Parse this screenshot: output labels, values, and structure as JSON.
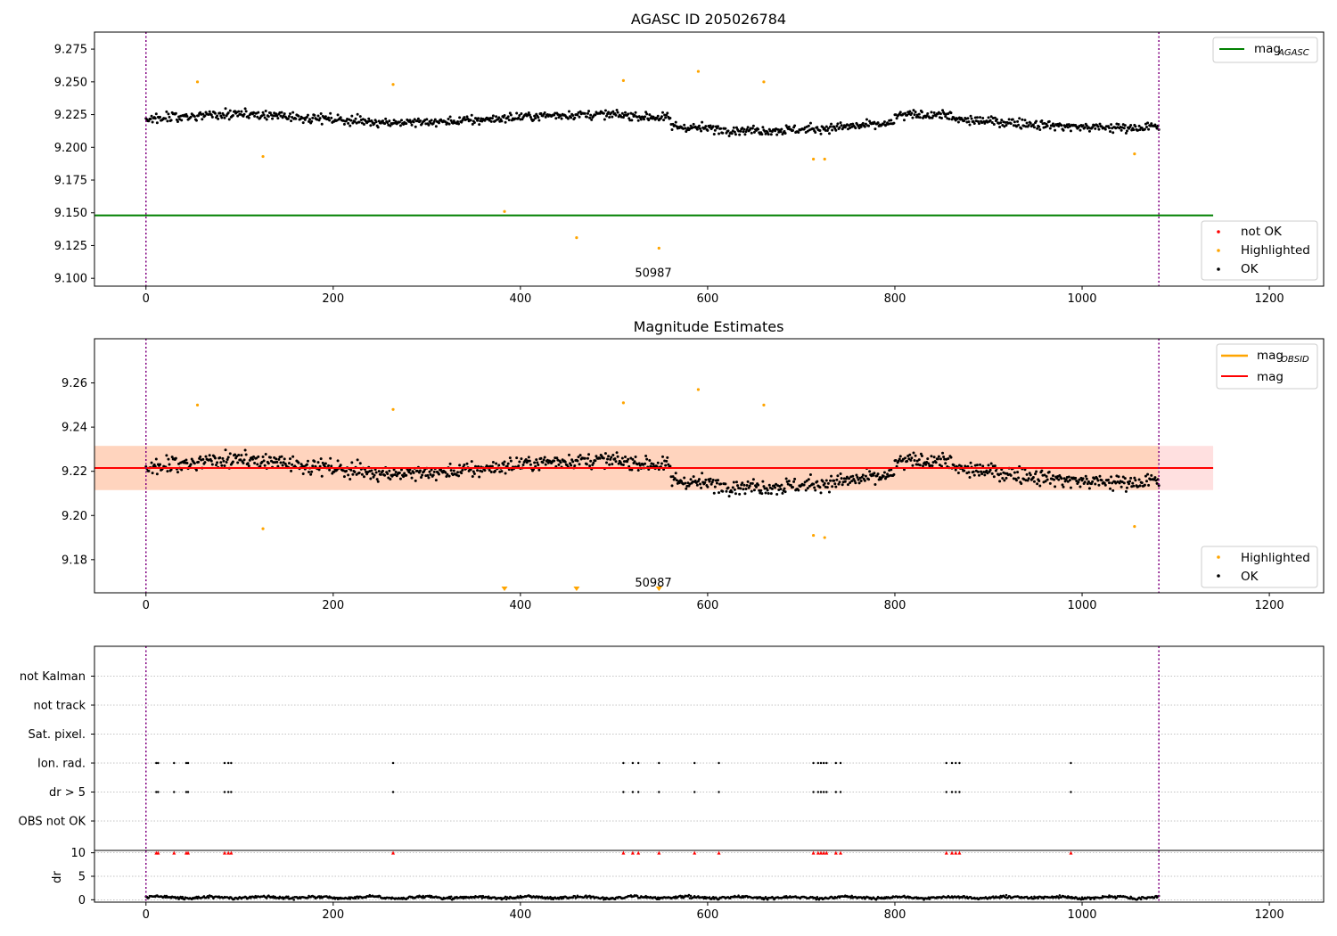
{
  "chart_data": [
    {
      "type": "scatter",
      "title": "AGASC ID 205026784",
      "xlim": [
        -55,
        1258
      ],
      "ylim": [
        9.094,
        9.288
      ],
      "xticks": [
        0,
        200,
        400,
        600,
        800,
        1000,
        1200
      ],
      "yticks": [
        "9.100",
        "9.125",
        "9.150",
        "9.175",
        "9.200",
        "9.225",
        "9.250",
        "9.275"
      ],
      "grid": false,
      "obsid_annotation": {
        "text": "50987",
        "x": 542,
        "y": 9.104
      },
      "vlines_x": [
        0,
        1082
      ],
      "lines": [
        {
          "name": "mag",
          "subscript": "AGASC",
          "color": "#008000",
          "y": 9.148,
          "x": [
            -55,
            1140
          ]
        }
      ],
      "series": [
        {
          "name": "not OK",
          "color": "#ff0000",
          "points": []
        },
        {
          "name": "Highlighted",
          "color": "#ffa500",
          "points": [
            [
              55,
              9.25
            ],
            [
              125,
              9.193
            ],
            [
              264,
              9.248
            ],
            [
              383,
              9.151
            ],
            [
              460,
              9.131
            ],
            [
              510,
              9.251
            ],
            [
              548,
              9.123
            ],
            [
              590,
              9.258
            ],
            [
              660,
              9.25
            ],
            [
              713,
              9.191
            ],
            [
              725,
              9.191
            ],
            [
              1056,
              9.195
            ]
          ]
        },
        {
          "name": "OK",
          "color": "#000000",
          "description": "about 1080 observations scattered between about 9.197 and 9.247, mean near 9.222",
          "x_range": [
            0,
            1082
          ],
          "mean": 9.222,
          "y_min": 9.197,
          "y_max": 9.247
        }
      ],
      "legends": [
        {
          "position": "upper right",
          "entries": [
            {
              "label": "mag",
              "subscript": "AGASC",
              "kind": "line",
              "color": "#008000"
            }
          ]
        },
        {
          "position": "lower right",
          "entries": [
            {
              "label": "not OK",
              "kind": "dot",
              "color": "#ff0000"
            },
            {
              "label": "Highlighted",
              "kind": "dot",
              "color": "#ffa500"
            },
            {
              "label": "OK",
              "kind": "dot",
              "color": "#000000"
            }
          ]
        }
      ]
    },
    {
      "type": "scatter",
      "title": "Magnitude Estimates",
      "xlim": [
        -55,
        1258
      ],
      "ylim": [
        9.165,
        9.28
      ],
      "xticks": [
        0,
        200,
        400,
        600,
        800,
        1000,
        1200
      ],
      "yticks": [
        "9.18",
        "9.20",
        "9.22",
        "9.24",
        "9.26"
      ],
      "grid": false,
      "obsid_annotation": {
        "text": "50987",
        "x": 542,
        "y": 9.1695
      },
      "vlines_x": [
        0,
        1082
      ],
      "lines": [
        {
          "name": "mag",
          "subscript": "OBSID",
          "color": "#ffa500",
          "y": 9.2215,
          "x": [
            -55,
            1082
          ]
        },
        {
          "name": "mag",
          "color": "#ff0000",
          "y": 9.2215,
          "x": [
            -55,
            1140
          ]
        }
      ],
      "bands": [
        {
          "name": "mag_obsid_band",
          "color": "#ffa500",
          "y": [
            9.2115,
            9.2315
          ],
          "x": [
            -55,
            1082
          ]
        },
        {
          "name": "mag_band",
          "color": "#ff0000",
          "y": [
            9.2115,
            9.2315
          ],
          "x": [
            -55,
            1140
          ]
        }
      ],
      "out_of_range_markers": {
        "color": "#ffa500",
        "x": [
          383,
          460,
          548
        ]
      },
      "series": [
        {
          "name": "Highlighted",
          "color": "#ffa500",
          "points": [
            [
              55,
              9.25
            ],
            [
              125,
              9.194
            ],
            [
              264,
              9.248
            ],
            [
              510,
              9.251
            ],
            [
              590,
              9.257
            ],
            [
              660,
              9.25
            ],
            [
              713,
              9.191
            ],
            [
              725,
              9.19
            ],
            [
              1056,
              9.195
            ]
          ]
        },
        {
          "name": "OK",
          "color": "#000000",
          "description": "same observations as upper panel",
          "x_range": [
            0,
            1082
          ],
          "mean": 9.222,
          "y_min": 9.197,
          "y_max": 9.247
        }
      ],
      "legends": [
        {
          "position": "upper right",
          "entries": [
            {
              "label": "mag",
              "subscript": "OBSID",
              "kind": "line",
              "color": "#ffa500"
            },
            {
              "label": "mag",
              "kind": "line",
              "color": "#ff0000"
            }
          ]
        },
        {
          "position": "lower right",
          "entries": [
            {
              "label": "Highlighted",
              "kind": "dot",
              "color": "#ffa500"
            },
            {
              "label": "OK",
              "kind": "dot",
              "color": "#000000"
            }
          ]
        }
      ]
    },
    {
      "type": "scatter",
      "title": "",
      "xlim": [
        -55,
        1258
      ],
      "xticks": [
        0,
        200,
        400,
        600,
        800,
        1000,
        1200
      ],
      "grid": true,
      "vlines_x": [
        0,
        1082
      ],
      "flag_rows": [
        "OBS not OK",
        "dr > 5",
        "Ion. rad.",
        "Sat. pixel.",
        "not track",
        "not Kalman"
      ],
      "flag_points": {
        "dr > 5": [
          11,
          13,
          30,
          43,
          45,
          84,
          88,
          91,
          264,
          510,
          520,
          526,
          548,
          586,
          612,
          713,
          718,
          721,
          724,
          727,
          737,
          742,
          855,
          861,
          865,
          869,
          988
        ],
        "Ion. rad.": [
          11,
          13,
          30,
          43,
          45,
          84,
          88,
          91,
          264,
          510,
          520,
          526,
          548,
          586,
          612,
          713,
          718,
          721,
          724,
          727,
          737,
          742,
          855,
          861,
          865,
          869,
          988
        ]
      },
      "dr_panel": {
        "ylabel": "dr",
        "yticks": [
          0,
          5,
          10
        ],
        "ylim": [
          -0.5,
          10.5
        ],
        "clipped_at": 10,
        "clipped_color": "#ff0000",
        "clipped_x": [
          11,
          13,
          30,
          43,
          45,
          84,
          88,
          91,
          264,
          510,
          520,
          526,
          548,
          586,
          612,
          713,
          718,
          721,
          724,
          727,
          737,
          742,
          855,
          861,
          865,
          869,
          988
        ],
        "series": {
          "name": "dr",
          "color": "#000000",
          "description": "dr values near 0 to 1 for all observations",
          "y_min": 0,
          "y_max": 1.8
        }
      }
    }
  ]
}
